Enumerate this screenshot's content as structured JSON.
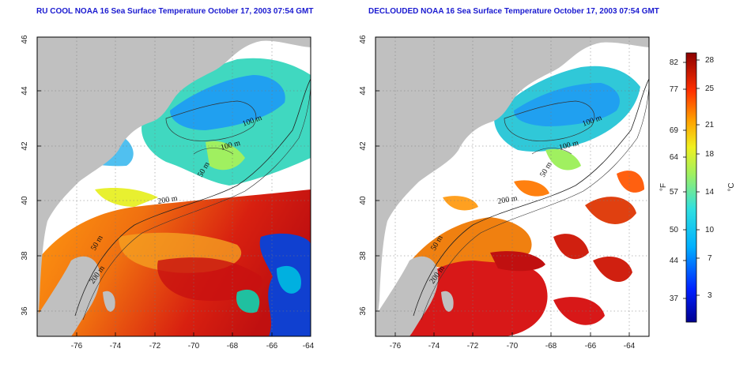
{
  "panels": [
    {
      "title": "RU COOL NOAA 16 Sea Surface Temperature October 17, 2003 07:54 GMT",
      "x_ticks": [
        "-76",
        "-74",
        "-72",
        "-70",
        "-68",
        "-66",
        "-64"
      ],
      "y_ticks": [
        "46",
        "44",
        "42",
        "40",
        "38",
        "36"
      ],
      "contour_labels": [
        "100 m",
        "100 m",
        "50 m",
        "200 m",
        "50 m",
        "200 m"
      ]
    },
    {
      "title": "DECLOUDED NOAA 16 Sea Surface Temperature October 17, 2003 07:54 GMT",
      "x_ticks": [
        "-76",
        "-74",
        "-72",
        "-70",
        "-68",
        "-66",
        "-64"
      ],
      "y_ticks": [
        "46",
        "44",
        "42",
        "40",
        "38",
        "36"
      ],
      "contour_labels": [
        "100 m",
        "100 m",
        "50 m",
        "200 m",
        "50 m",
        "200 m"
      ]
    }
  ],
  "colorbar": {
    "fahrenheit_ticks": [
      "82",
      "77",
      "69",
      "64",
      "57",
      "50",
      "44",
      "37"
    ],
    "celsius_ticks": [
      "28",
      "25",
      "21",
      "18",
      "14",
      "10",
      "7",
      "3"
    ],
    "fahrenheit_label": "°F",
    "celsius_label": "°C"
  },
  "colors": {
    "land": "#c0c0c0",
    "cloud": "#ffffff",
    "title": "#1a1ad0"
  }
}
